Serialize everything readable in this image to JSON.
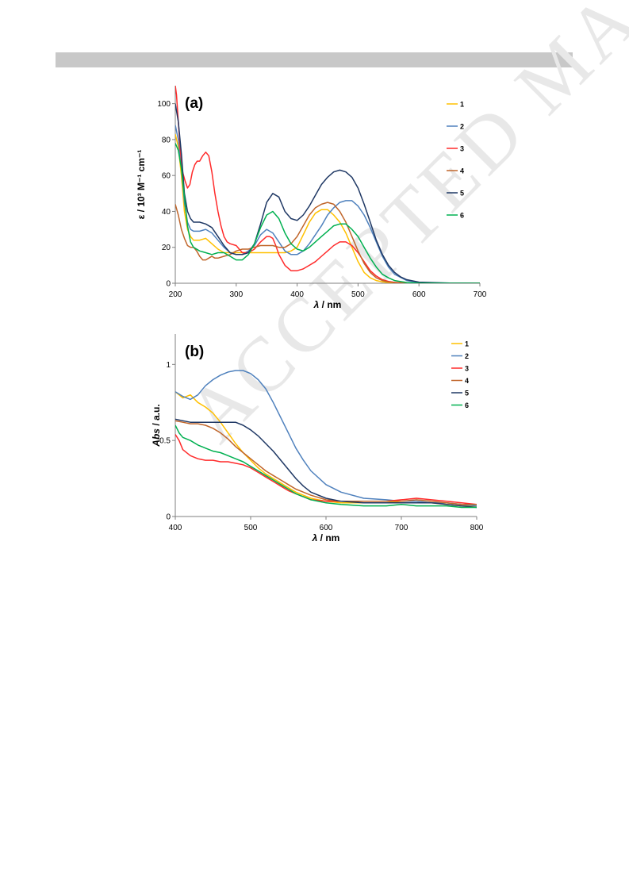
{
  "page": {
    "watermark": "ACCEPTED MANUSCRIPT"
  },
  "chart_data": [
    {
      "type": "line",
      "panel_label": "(a)",
      "xlabel_italic": "λ",
      "xlabel_rest": " / nm",
      "ylabel": "ε / 10³ M⁻¹ cm⁻¹",
      "xlim": [
        200,
        700
      ],
      "ylim": [
        0,
        110
      ],
      "xticks": [
        200,
        300,
        400,
        500,
        600,
        700
      ],
      "yticks": [
        0,
        20,
        40,
        60,
        80,
        100
      ],
      "grid": false,
      "legend_position": "right",
      "series": [
        {
          "name": "1",
          "color": "#ffc000",
          "x": [
            200,
            205,
            210,
            215,
            220,
            225,
            230,
            240,
            250,
            260,
            270,
            280,
            290,
            300,
            310,
            320,
            330,
            340,
            350,
            360,
            370,
            380,
            390,
            400,
            410,
            420,
            430,
            440,
            450,
            460,
            470,
            480,
            490,
            500,
            510,
            520,
            530,
            540,
            550,
            560,
            580,
            600,
            650,
            700
          ],
          "y": [
            83,
            76,
            60,
            40,
            30,
            26,
            24,
            24,
            25,
            22,
            19,
            17,
            17,
            17,
            17,
            17,
            17,
            17,
            17,
            17,
            17,
            17,
            18,
            20,
            27,
            34,
            39,
            41,
            41,
            38,
            34,
            28,
            20,
            12,
            6,
            3,
            1.5,
            0.8,
            0.4,
            0.2,
            0.1,
            0,
            0,
            0
          ]
        },
        {
          "name": "2",
          "color": "#4f81bd",
          "x": [
            200,
            205,
            210,
            215,
            220,
            225,
            230,
            240,
            250,
            260,
            270,
            280,
            290,
            300,
            310,
            320,
            330,
            340,
            350,
            360,
            370,
            380,
            390,
            400,
            410,
            420,
            430,
            440,
            450,
            460,
            470,
            480,
            490,
            500,
            510,
            520,
            530,
            540,
            550,
            560,
            580,
            600,
            650,
            700
          ],
          "y": [
            88,
            80,
            65,
            45,
            34,
            30,
            29,
            29,
            30,
            28,
            24,
            20,
            17,
            16,
            16,
            18,
            21,
            27,
            30,
            28,
            23,
            18,
            16,
            16,
            18,
            22,
            27,
            32,
            38,
            42,
            45,
            46,
            46,
            43,
            38,
            31,
            23,
            15,
            9,
            5,
            1.5,
            0.4,
            0,
            0
          ]
        },
        {
          "name": "3",
          "color": "#ff2a2a",
          "x": [
            200,
            202,
            205,
            208,
            212,
            216,
            220,
            224,
            228,
            232,
            236,
            240,
            245,
            250,
            255,
            260,
            265,
            270,
            275,
            280,
            285,
            290,
            300,
            310,
            320,
            330,
            340,
            350,
            355,
            360,
            365,
            370,
            380,
            390,
            400,
            410,
            420,
            430,
            440,
            450,
            460,
            470,
            480,
            490,
            500,
            510,
            520,
            530,
            540,
            550,
            560,
            580,
            600,
            650,
            700
          ],
          "y": [
            110,
            105,
            90,
            75,
            62,
            57,
            53,
            55,
            62,
            66,
            68,
            68,
            71,
            73,
            71,
            62,
            50,
            40,
            32,
            26,
            23,
            22,
            21,
            17,
            17,
            19,
            23,
            26,
            26,
            25,
            21,
            16,
            10,
            7,
            7,
            8,
            10,
            12,
            15,
            18,
            21,
            23,
            23,
            21,
            17,
            12,
            7,
            4,
            2,
            1,
            0.5,
            0.1,
            0,
            0,
            0
          ]
        },
        {
          "name": "4",
          "color": "#c0652a",
          "x": [
            200,
            205,
            210,
            215,
            220,
            225,
            230,
            235,
            240,
            245,
            250,
            255,
            260,
            265,
            270,
            280,
            290,
            300,
            310,
            320,
            330,
            340,
            350,
            360,
            370,
            380,
            390,
            400,
            410,
            420,
            430,
            440,
            450,
            460,
            470,
            480,
            490,
            500,
            510,
            520,
            530,
            540,
            550,
            560,
            580,
            600,
            650,
            700
          ],
          "y": [
            44,
            38,
            30,
            25,
            21,
            20,
            20,
            18,
            15,
            13,
            13,
            14,
            15,
            14,
            14,
            15,
            16,
            18,
            19,
            19,
            20,
            21,
            21,
            21,
            20,
            20,
            22,
            26,
            32,
            38,
            42,
            44,
            45,
            44,
            40,
            34,
            26,
            18,
            11,
            6,
            3,
            1.5,
            0.7,
            0.3,
            0.1,
            0,
            0,
            0
          ]
        },
        {
          "name": "5",
          "color": "#1f3864",
          "x": [
            200,
            205,
            210,
            215,
            220,
            225,
            230,
            240,
            250,
            260,
            270,
            280,
            290,
            300,
            310,
            320,
            330,
            340,
            350,
            360,
            370,
            380,
            390,
            400,
            410,
            420,
            430,
            440,
            450,
            460,
            470,
            480,
            490,
            500,
            510,
            520,
            530,
            540,
            550,
            560,
            570,
            580,
            600,
            650,
            700
          ],
          "y": [
            100,
            90,
            72,
            50,
            40,
            36,
            34,
            34,
            33,
            31,
            26,
            21,
            17,
            16,
            16,
            17,
            22,
            33,
            45,
            50,
            48,
            40,
            36,
            35,
            38,
            43,
            49,
            55,
            59,
            62,
            63,
            62,
            59,
            53,
            44,
            34,
            24,
            16,
            10,
            6,
            3.5,
            2,
            0.6,
            0.1,
            0
          ]
        },
        {
          "name": "6",
          "color": "#00b050",
          "x": [
            200,
            205,
            210,
            215,
            220,
            225,
            230,
            240,
            250,
            260,
            270,
            280,
            290,
            300,
            310,
            320,
            330,
            340,
            350,
            360,
            370,
            380,
            390,
            400,
            410,
            420,
            430,
            440,
            450,
            460,
            470,
            480,
            490,
            500,
            510,
            520,
            530,
            540,
            550,
            560,
            580,
            600,
            650,
            700
          ],
          "y": [
            78,
            74,
            64,
            48,
            32,
            23,
            20,
            18,
            17,
            16,
            17,
            17,
            15,
            13,
            13,
            16,
            22,
            31,
            38,
            40,
            36,
            28,
            22,
            19,
            18,
            20,
            23,
            26,
            29,
            32,
            33,
            33,
            30,
            26,
            20,
            14,
            9,
            5,
            3,
            1.5,
            0.4,
            0.1,
            0,
            0
          ]
        }
      ]
    },
    {
      "type": "line",
      "panel_label": "(b)",
      "xlabel_italic": "λ",
      "xlabel_rest": " / nm",
      "ylabel_italic": "Abs",
      "ylabel_rest": " / a.u.",
      "xlim": [
        400,
        800
      ],
      "ylim": [
        0,
        1.2
      ],
      "xticks": [
        400,
        500,
        600,
        700,
        800
      ],
      "yticks": [
        0,
        0.5,
        1
      ],
      "grid": false,
      "legend_position": "top-right",
      "series": [
        {
          "name": "1",
          "color": "#ffc000",
          "x": [
            400,
            410,
            420,
            430,
            440,
            450,
            460,
            470,
            480,
            490,
            500,
            510,
            520,
            530,
            540,
            550,
            560,
            570,
            580,
            600,
            620,
            650,
            680,
            700,
            720,
            740,
            760,
            780,
            800
          ],
          "y": [
            0.82,
            0.78,
            0.8,
            0.75,
            0.72,
            0.68,
            0.62,
            0.55,
            0.48,
            0.42,
            0.37,
            0.32,
            0.28,
            0.25,
            0.22,
            0.19,
            0.16,
            0.14,
            0.12,
            0.1,
            0.09,
            0.09,
            0.09,
            0.1,
            0.1,
            0.09,
            0.08,
            0.07,
            0.07
          ]
        },
        {
          "name": "2",
          "color": "#4f81bd",
          "x": [
            400,
            410,
            420,
            430,
            440,
            450,
            460,
            470,
            480,
            490,
            500,
            510,
            520,
            530,
            540,
            550,
            560,
            570,
            580,
            600,
            620,
            650,
            680,
            700,
            720,
            740,
            760,
            780,
            800
          ],
          "y": [
            0.82,
            0.79,
            0.77,
            0.8,
            0.86,
            0.9,
            0.93,
            0.95,
            0.96,
            0.96,
            0.94,
            0.9,
            0.84,
            0.75,
            0.65,
            0.55,
            0.45,
            0.37,
            0.3,
            0.21,
            0.16,
            0.12,
            0.11,
            0.1,
            0.1,
            0.09,
            0.09,
            0.08,
            0.07
          ]
        },
        {
          "name": "3",
          "color": "#ff2a2a",
          "x": [
            400,
            405,
            410,
            420,
            430,
            440,
            450,
            460,
            470,
            480,
            490,
            500,
            510,
            520,
            530,
            540,
            550,
            560,
            570,
            580,
            600,
            620,
            650,
            680,
            700,
            720,
            740,
            760,
            780,
            800
          ],
          "y": [
            0.54,
            0.5,
            0.44,
            0.4,
            0.38,
            0.37,
            0.37,
            0.36,
            0.36,
            0.35,
            0.34,
            0.32,
            0.29,
            0.26,
            0.23,
            0.2,
            0.17,
            0.15,
            0.13,
            0.11,
            0.1,
            0.1,
            0.1,
            0.1,
            0.11,
            0.12,
            0.11,
            0.1,
            0.09,
            0.08
          ]
        },
        {
          "name": "4",
          "color": "#c0652a",
          "x": [
            400,
            410,
            420,
            430,
            440,
            450,
            460,
            470,
            480,
            490,
            500,
            510,
            520,
            530,
            540,
            550,
            560,
            570,
            580,
            600,
            620,
            650,
            680,
            700,
            720,
            740,
            760,
            780,
            800
          ],
          "y": [
            0.63,
            0.62,
            0.61,
            0.61,
            0.6,
            0.58,
            0.55,
            0.51,
            0.46,
            0.42,
            0.38,
            0.34,
            0.3,
            0.27,
            0.24,
            0.21,
            0.18,
            0.16,
            0.14,
            0.11,
            0.1,
            0.1,
            0.1,
            0.1,
            0.11,
            0.1,
            0.09,
            0.08,
            0.08
          ]
        },
        {
          "name": "5",
          "color": "#1f3864",
          "x": [
            400,
            410,
            420,
            430,
            440,
            450,
            460,
            470,
            480,
            490,
            500,
            510,
            520,
            530,
            540,
            550,
            560,
            570,
            580,
            600,
            620,
            650,
            680,
            700,
            720,
            740,
            760,
            780,
            800
          ],
          "y": [
            0.64,
            0.63,
            0.62,
            0.62,
            0.62,
            0.62,
            0.62,
            0.62,
            0.62,
            0.6,
            0.57,
            0.53,
            0.48,
            0.43,
            0.37,
            0.31,
            0.25,
            0.2,
            0.16,
            0.12,
            0.1,
            0.09,
            0.09,
            0.09,
            0.09,
            0.09,
            0.08,
            0.07,
            0.06
          ]
        },
        {
          "name": "6",
          "color": "#00b050",
          "x": [
            400,
            405,
            410,
            420,
            430,
            440,
            450,
            460,
            470,
            480,
            490,
            500,
            510,
            520,
            530,
            540,
            550,
            560,
            570,
            580,
            600,
            620,
            650,
            680,
            700,
            720,
            740,
            760,
            780,
            800
          ],
          "y": [
            0.6,
            0.55,
            0.52,
            0.5,
            0.47,
            0.45,
            0.43,
            0.42,
            0.4,
            0.38,
            0.36,
            0.33,
            0.3,
            0.27,
            0.24,
            0.21,
            0.18,
            0.15,
            0.13,
            0.11,
            0.09,
            0.08,
            0.07,
            0.07,
            0.08,
            0.07,
            0.07,
            0.07,
            0.06,
            0.06
          ]
        }
      ]
    }
  ]
}
